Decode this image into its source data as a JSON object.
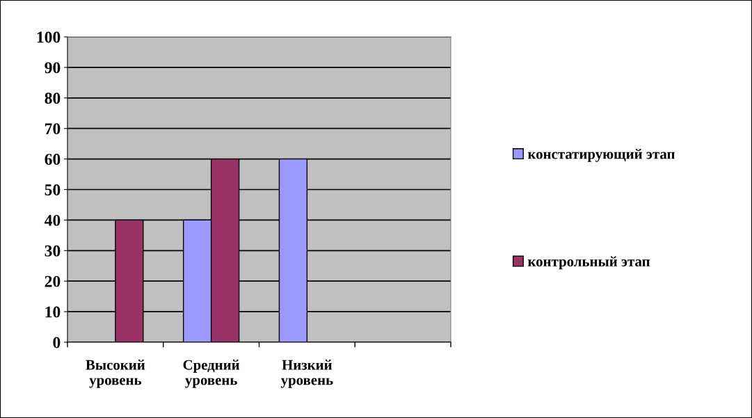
{
  "chart_data": {
    "type": "bar",
    "categories": [
      "Высокий уровень",
      "Средний уровень",
      "Низкий уровень",
      null
    ],
    "series": [
      {
        "name": "констатирующий этап",
        "color": "#9999ff",
        "values": [
          null,
          40,
          60,
          null
        ]
      },
      {
        "name": "контрольный этап",
        "color": "#993366",
        "values": [
          40,
          60,
          null,
          null
        ]
      }
    ],
    "ylim": [
      0,
      100
    ],
    "yticks": [
      0,
      10,
      20,
      30,
      40,
      50,
      60,
      70,
      80,
      90,
      100
    ],
    "grid": "y",
    "legend": "right"
  }
}
